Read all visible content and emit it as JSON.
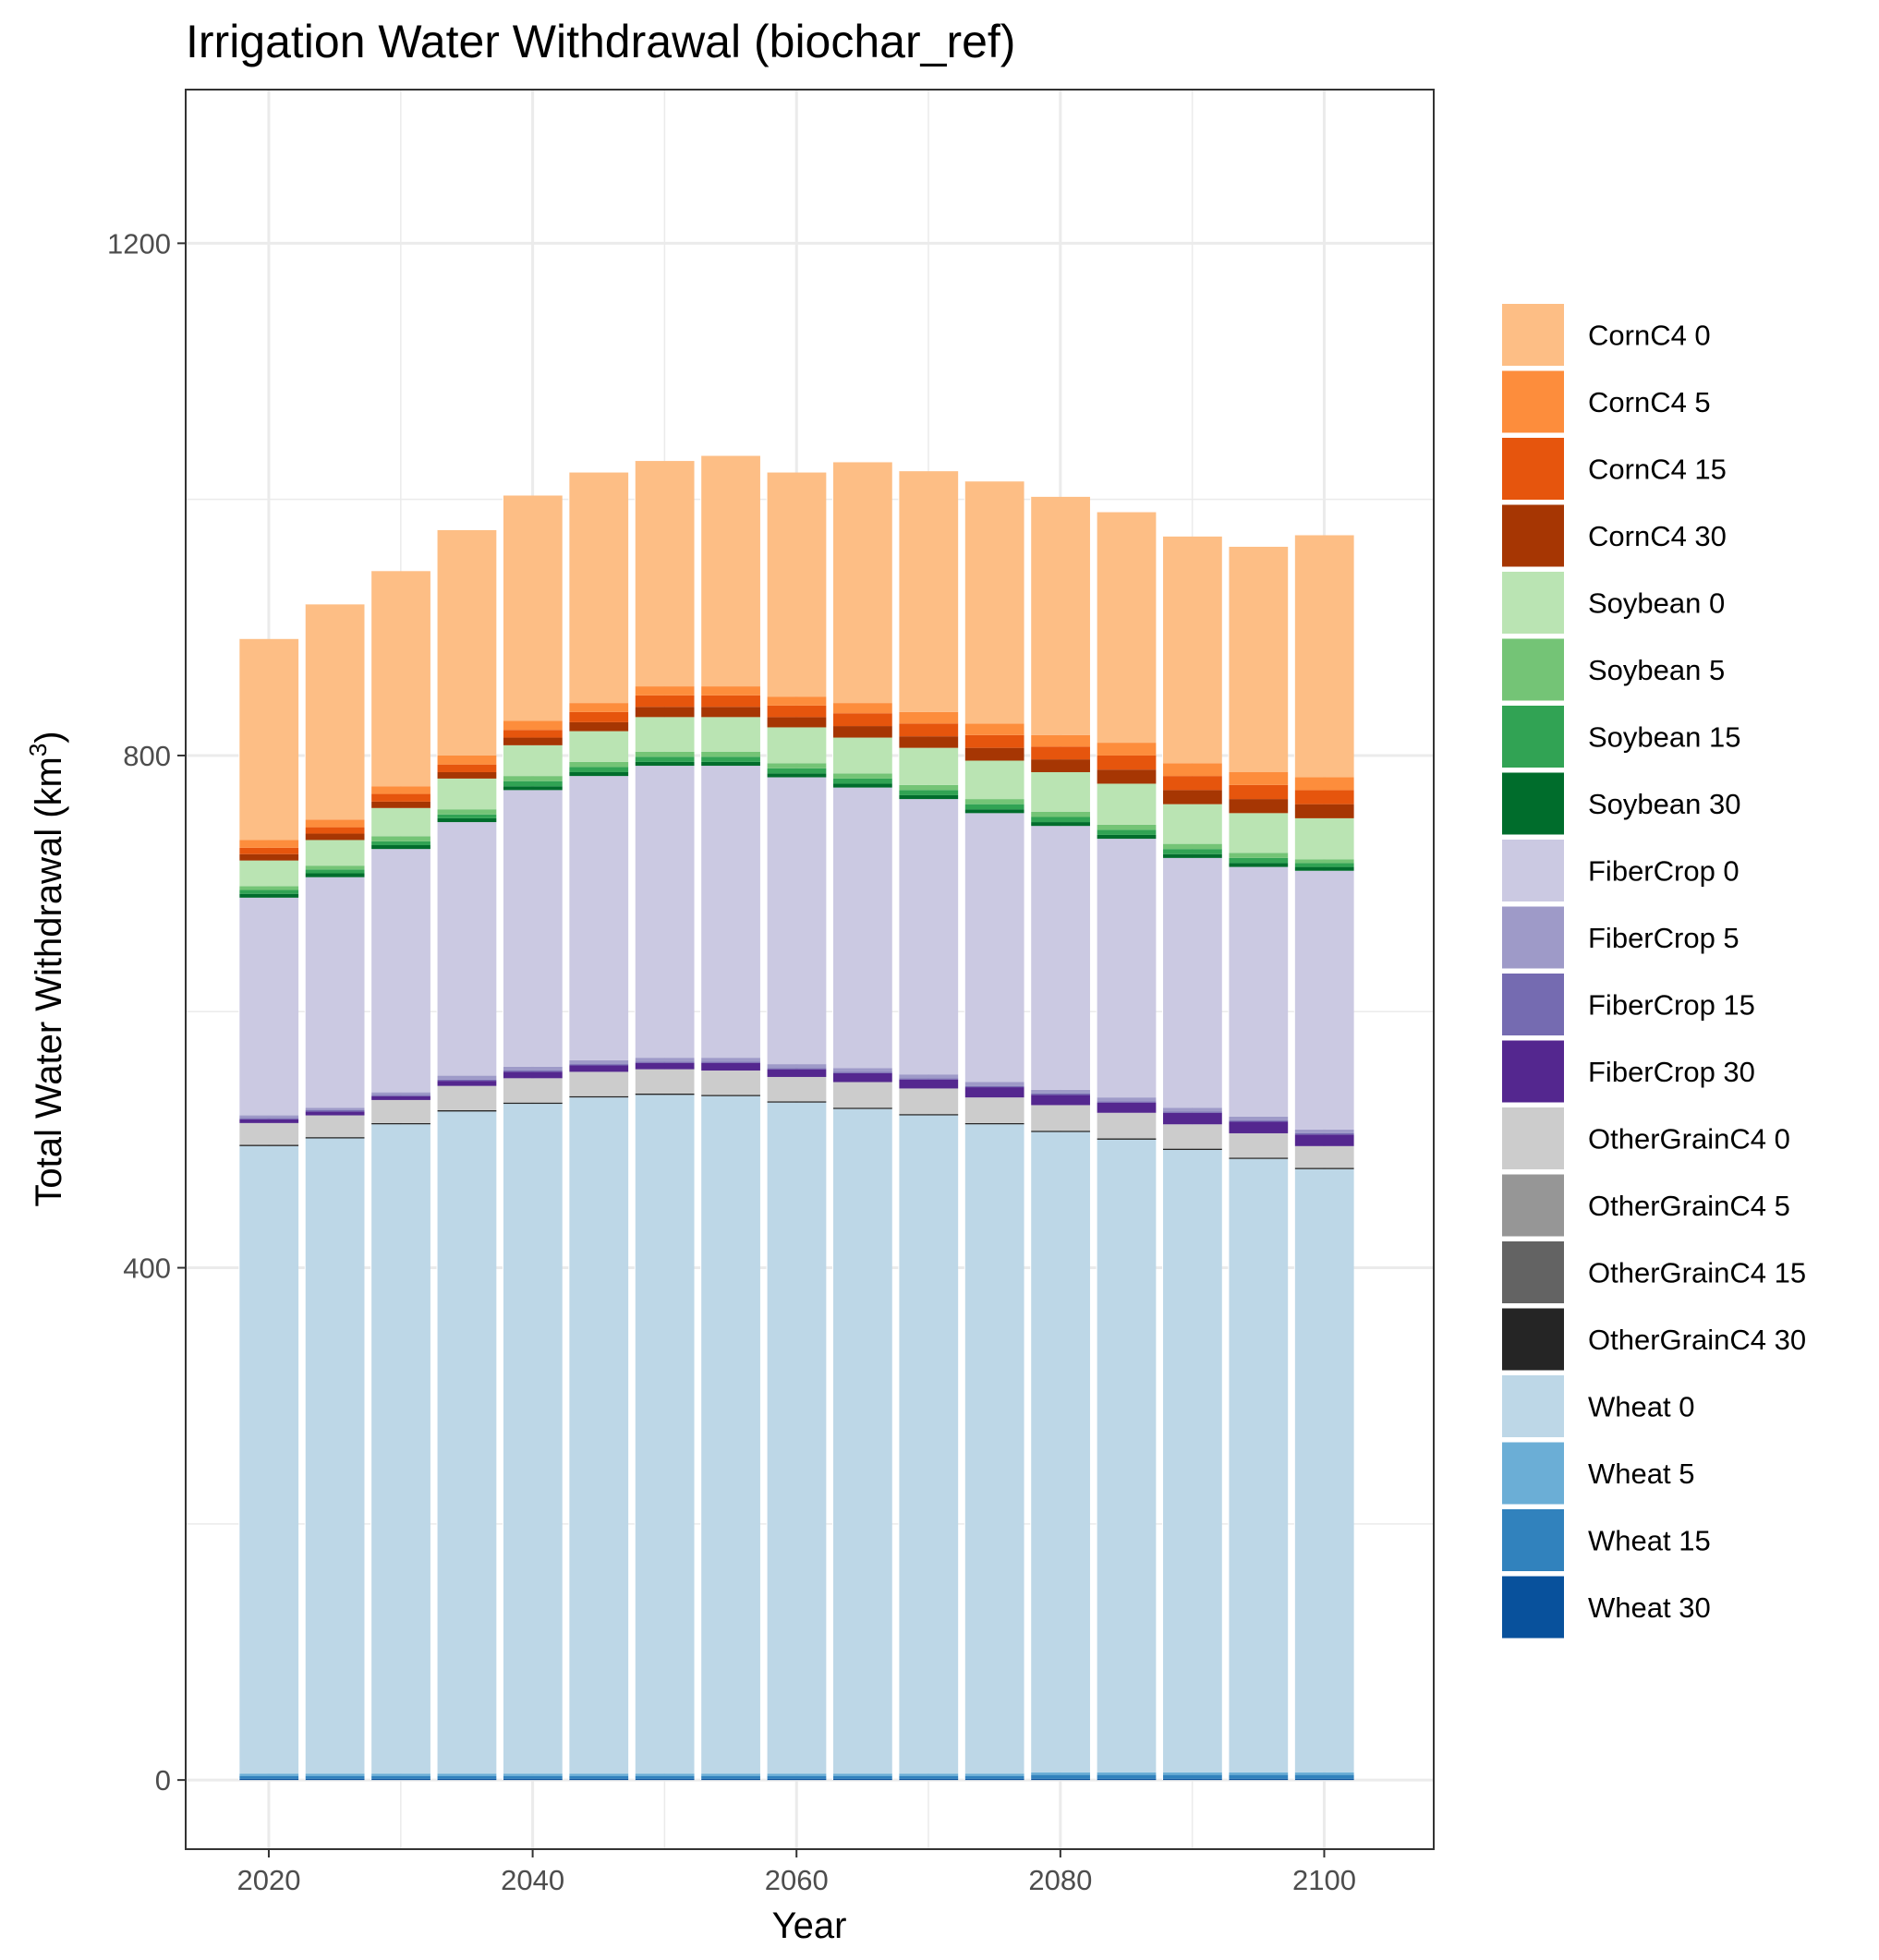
{
  "chart_data": {
    "type": "bar",
    "stacked": true,
    "title": "Irrigation Water Withdrawal (biochar_ref)",
    "xlabel": "Year",
    "ylabel": "Total Water Withdrawal (km",
    "ylabel_superscript": "3",
    "ylabel_suffix": ")",
    "xlim": [
      2013.7,
      2108.3
    ],
    "ylim": [
      -54,
      1320
    ],
    "x_ticks": [
      2020,
      2040,
      2060,
      2080,
      2100
    ],
    "y_ticks": [
      0,
      400,
      800,
      1200
    ],
    "y_minor_gridlines": [
      200,
      600,
      1000
    ],
    "x_minor_gridlines": [
      2030,
      2050,
      2070,
      2090
    ],
    "grid": true,
    "legend_position": "right",
    "x": [
      2020,
      2025,
      2030,
      2035,
      2040,
      2045,
      2050,
      2055,
      2060,
      2065,
      2070,
      2075,
      2080,
      2085,
      2090,
      2095,
      2100
    ],
    "series": [
      {
        "name": "Wheat 30",
        "color": "#08519c",
        "values": [
          1,
          1,
          1,
          1,
          1,
          1,
          1,
          1,
          1,
          1,
          1,
          1,
          1,
          1,
          1,
          1,
          1
        ]
      },
      {
        "name": "Wheat 15",
        "color": "#3182bd",
        "values": [
          2,
          2,
          2,
          2,
          2,
          2,
          2,
          2,
          2,
          2,
          2,
          2,
          3,
          3,
          3,
          3,
          3
        ]
      },
      {
        "name": "Wheat 5",
        "color": "#6baed6",
        "values": [
          2,
          2,
          2,
          2,
          2,
          2,
          2,
          2,
          2,
          2,
          2,
          2,
          2,
          2,
          2,
          2,
          2
        ]
      },
      {
        "name": "Wheat 0",
        "color": "#bdd7e7",
        "values": [
          490,
          496,
          507,
          517,
          523,
          528,
          530,
          529,
          524,
          519,
          514,
          507,
          500,
          494,
          486,
          479,
          471
        ]
      },
      {
        "name": "OtherGrainC4 30",
        "color": "#252525",
        "values": [
          1,
          1,
          1,
          1,
          1,
          1,
          1,
          1,
          1,
          1,
          1,
          1,
          1,
          1,
          1,
          1,
          1
        ]
      },
      {
        "name": "OtherGrainC4 15",
        "color": "#636363",
        "values": [
          0,
          0,
          0,
          0,
          0,
          0,
          0,
          0,
          0,
          0,
          0,
          0,
          0,
          0,
          0,
          0,
          0
        ]
      },
      {
        "name": "OtherGrainC4 5",
        "color": "#969696",
        "values": [
          0,
          0,
          0,
          0,
          0,
          0,
          0,
          0,
          0,
          0,
          0,
          0,
          0,
          0,
          0,
          0,
          0
        ]
      },
      {
        "name": "OtherGrainC4 0",
        "color": "#cccccc",
        "values": [
          17,
          17,
          18,
          19,
          19,
          19,
          19,
          19,
          19,
          20,
          20,
          20,
          20,
          20,
          19,
          19,
          17
        ]
      },
      {
        "name": "FiberCrop 30",
        "color": "#54278f",
        "values": [
          3,
          3,
          3,
          4,
          5,
          5,
          5,
          6,
          6,
          7,
          7,
          8,
          8,
          8,
          9,
          9,
          9
        ]
      },
      {
        "name": "FiberCrop 15",
        "color": "#756bb1",
        "values": [
          1,
          1,
          1,
          1,
          1,
          1,
          1,
          1,
          1,
          1,
          1,
          1,
          1,
          1,
          1,
          1,
          1
        ]
      },
      {
        "name": "FiberCrop 5",
        "color": "#9e9ac8",
        "values": [
          2,
          2,
          2,
          3,
          3,
          3,
          3,
          3,
          3,
          3,
          3,
          3,
          3,
          3,
          3,
          3,
          3
        ]
      },
      {
        "name": "FiberCrop 0",
        "color": "#cbc9e2",
        "values": [
          170,
          180,
          190,
          198,
          216,
          222,
          228,
          228,
          224,
          219,
          215,
          210,
          206,
          202,
          195,
          195,
          202
        ]
      },
      {
        "name": "Soybean 30",
        "color": "#006d2c",
        "values": [
          3,
          3,
          3,
          3,
          3,
          3,
          3,
          3,
          3,
          3,
          3,
          3,
          3,
          3,
          3,
          3,
          3
        ]
      },
      {
        "name": "Soybean 15",
        "color": "#31a354",
        "values": [
          3,
          3,
          3,
          3,
          4,
          4,
          4,
          4,
          4,
          4,
          4,
          4,
          4,
          4,
          4,
          4,
          3
        ]
      },
      {
        "name": "Soybean 5",
        "color": "#74c476",
        "values": [
          3,
          3,
          4,
          4,
          4,
          4,
          4,
          4,
          4,
          4,
          4,
          4,
          4,
          4,
          4,
          4,
          3
        ]
      },
      {
        "name": "Soybean 0",
        "color": "#bae4b3",
        "values": [
          20,
          20,
          22,
          24,
          24,
          24,
          27,
          27,
          28,
          28,
          29,
          30,
          31,
          32,
          31,
          31,
          32
        ]
      },
      {
        "name": "CornC4 30",
        "color": "#a63603",
        "values": [
          5,
          5,
          5,
          5,
          6,
          7,
          8,
          8,
          8,
          9,
          9,
          10,
          10,
          11,
          11,
          11,
          11
        ]
      },
      {
        "name": "CornC4 15",
        "color": "#e6550d",
        "values": [
          5,
          5,
          6,
          6,
          6,
          8,
          9,
          9,
          9,
          10,
          10,
          10,
          10,
          11,
          11,
          11,
          11
        ]
      },
      {
        "name": "CornC4 5",
        "color": "#fd8d3c",
        "values": [
          6,
          6,
          6,
          7,
          7,
          7,
          7,
          7,
          7,
          8,
          9,
          9,
          9,
          10,
          10,
          10,
          10
        ]
      },
      {
        "name": "CornC4 0",
        "color": "#fdbe85",
        "values": [
          157,
          168,
          168,
          176,
          176,
          180,
          176,
          180,
          175,
          188,
          188,
          189,
          186,
          180,
          177,
          176,
          189
        ]
      }
    ],
    "legend_order": [
      "CornC4 0",
      "CornC4 5",
      "CornC4 15",
      "CornC4 30",
      "Soybean 0",
      "Soybean 5",
      "Soybean 15",
      "Soybean 30",
      "FiberCrop 0",
      "FiberCrop 5",
      "FiberCrop 15",
      "FiberCrop 30",
      "OtherGrainC4 0",
      "OtherGrainC4 5",
      "OtherGrainC4 15",
      "OtherGrainC4 30",
      "Wheat 0",
      "Wheat 5",
      "Wheat 15",
      "Wheat 30"
    ]
  }
}
